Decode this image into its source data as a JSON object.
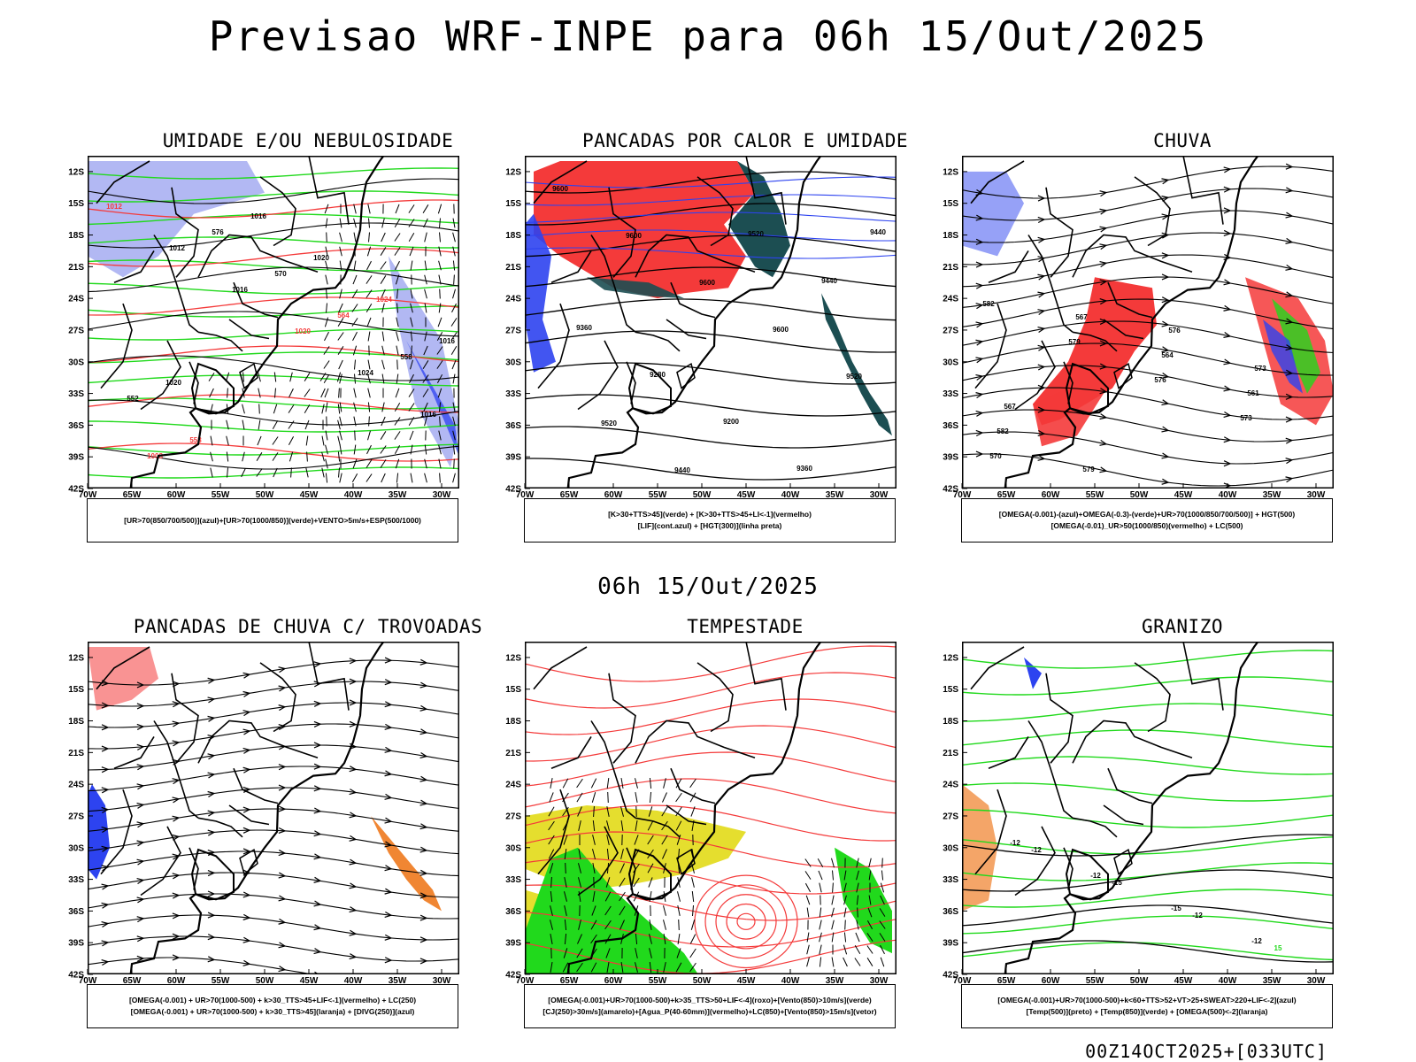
{
  "header": {
    "title": "Previsao WRF-INPE  para 06h 15/Out/2025",
    "mid_title": "06h 15/Out/2025",
    "run_stamp": "00Z14OCT2025+[033UTC]"
  },
  "axes": {
    "lat_labels": [
      "12S",
      "15S",
      "18S",
      "21S",
      "24S",
      "27S",
      "30S",
      "33S",
      "36S",
      "39S",
      "42S"
    ],
    "lon_labels": [
      "70W",
      "65W",
      "60W",
      "55W",
      "50W",
      "45W",
      "40W",
      "35W",
      "30W"
    ]
  },
  "colors": {
    "lightblue": "#aab0f2",
    "blue": "#2d43f0",
    "green": "#21d91c",
    "red": "#f43a3a",
    "darkteal": "#1c4e52",
    "yellow": "#e5de2e",
    "orange": "#ef7f28",
    "purple": "#a030d0"
  },
  "panels": [
    {
      "title": "UMIDADE E/OU NEBULOSIDADE",
      "legend": [
        "[UR>70(850/700/500)](azul)+[UR>70(1000/850)](verde)+VENTO>5m/s+ESP(500/1000)"
      ],
      "contour_labels": [
        "1012",
        "1012",
        "1016",
        "1020",
        "1024",
        "1016",
        "1008",
        "576",
        "570",
        "564",
        "558",
        "552",
        "558",
        "1016",
        "1020",
        "1024",
        "1016",
        "1020"
      ]
    },
    {
      "title": "PANCADAS POR CALOR E UMIDADE",
      "legend": [
        "[K>30+TTS>45](verde) + [K>30+TTS>45+LI<-1](vermelho)",
        "[LIF](cont.azul) + [HGT(300)](linha preta)"
      ],
      "contour_labels": [
        "9600",
        "9600",
        "9600",
        "9600",
        "9520",
        "9520",
        "9440",
        "9520",
        "9440",
        "9360",
        "9280",
        "9200",
        "9360",
        "9440"
      ]
    },
    {
      "title": "CHUVA",
      "legend": [
        "[OMEGA(-0.001)-(azul)+OMEGA(-0.3)-(verde)+UR>70(1000/850/700/500)] + HGT(500)",
        "[OMEGA(-0.01)_UR>50(1000/850)(vermelho) + LC(500)"
      ],
      "contour_labels": [
        "582",
        "579",
        "576",
        "573",
        "570",
        "567",
        "564",
        "561",
        "582",
        "579",
        "576",
        "573",
        "567"
      ]
    },
    {
      "title": "PANCADAS DE CHUVA C/ TROVOADAS",
      "legend": [
        "[OMEGA(-0.001) + UR>70(1000-500) + k>30_TTS>45+LIF<-1](vermelho) + LC(250)",
        "[OMEGA(-0.001) + UR>70(1000-500) + k>30_TTS>45](laranja) + [DIVG(250)](azul)"
      ],
      "contour_labels": []
    },
    {
      "title": "TEMPESTADE",
      "legend": [
        "[OMEGA(-0.001)+UR>70(1000-500)+k>35_TTS>50+LIF<-4](roxo)+[Vento(850)>10m/s](verde)",
        "[CJ(250)>30m/s](amarelo)+[Agua_P(40-60mm)](vermelho)+LC(850)+[Vento(850)>15m/s](vetor)"
      ],
      "contour_labels": []
    },
    {
      "title": "GRANIZO",
      "legend": [
        "[OMEGA(-0.001)+UR>70(1000-500)+k<60+TTS>52+VT>25+SWEAT>220+LIF<-2](azul)",
        "[Temp(500)](preto) + [Temp(850)](verde) + [OMEGA(500)<-2](laranja)"
      ],
      "contour_labels": [
        "-12",
        "-12",
        "-15",
        "-12",
        "-12",
        "-15",
        "-12",
        "15"
      ]
    }
  ]
}
